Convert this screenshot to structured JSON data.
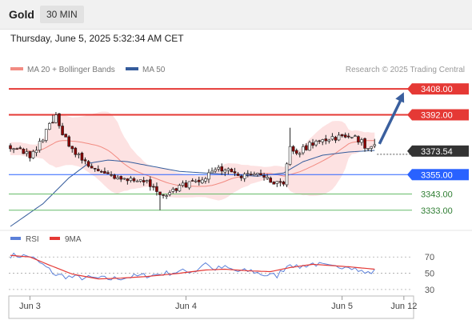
{
  "header": {
    "asset": "Gold",
    "timeframe": "30 MIN",
    "datetime": "Thursday, June 5, 2025 5:32:34 AM CET",
    "copyright": "Research © 2025 Trading Central"
  },
  "colors": {
    "resistance": "#e53935",
    "support_strong": "#2962ff",
    "support_weak": "#66bb6a",
    "ma20": "#f28b82",
    "bands": "#fde2e2",
    "ma50": "#355c9c",
    "candle_up": "#ffffff",
    "candle_down": "#8b0000",
    "arrow": "#3a5f9e",
    "rsi": "#5b80d9",
    "rsi_ma": "#e53935"
  },
  "chart_data": [
    {
      "type": "candlestick",
      "title": "",
      "legend": [
        {
          "name": "MA 20 + Bollinger Bands",
          "color": "#f28b82"
        },
        {
          "name": "MA 50",
          "color": "#355c9c"
        }
      ],
      "legend_placement": "top-left",
      "ylim": [
        3322,
        3416
      ],
      "x_labels": [
        {
          "label": "Jun 3",
          "x": 6
        },
        {
          "label": "Jun 4",
          "x": 54
        },
        {
          "label": "Jun 5",
          "x": 102
        },
        {
          "label": "Jun 12",
          "x": 121
        }
      ],
      "last_price": 3373.54,
      "levels": [
        {
          "label": "3408.00",
          "value": 3408.0,
          "kind": "resistance"
        },
        {
          "label": "3392.00",
          "value": 3392.0,
          "kind": "resistance"
        },
        {
          "label": "3373.54",
          "value": 3373.54,
          "kind": "last"
        },
        {
          "label": "3355.00",
          "value": 3355.0,
          "kind": "support_strong"
        },
        {
          "label": "3343.00",
          "value": 3343.0,
          "kind": "support_weak"
        },
        {
          "label": "3333.00",
          "value": 3333.0,
          "kind": "support_weak"
        }
      ],
      "forecast_arrow": {
        "from": [
          112,
          3374
        ],
        "to": [
          121,
          3406
        ]
      },
      "key_prices": {
        "low": 3333,
        "high": 3392,
        "start": 3373
      }
    },
    {
      "type": "line",
      "title": "",
      "legend": [
        {
          "name": "RSI",
          "color": "#5b80d9"
        },
        {
          "name": "9MA",
          "color": "#e53935"
        }
      ],
      "legend_placement": "top-left",
      "ylim": [
        22,
        85
      ],
      "y_ticks": [
        70,
        50,
        30
      ],
      "rsi_anchors": [
        [
          0,
          72
        ],
        [
          6,
          71
        ],
        [
          10,
          60
        ],
        [
          14,
          48
        ],
        [
          19,
          45
        ],
        [
          25,
          44
        ],
        [
          31,
          43
        ],
        [
          38,
          46
        ],
        [
          44,
          48
        ],
        [
          52,
          52
        ],
        [
          57,
          53
        ],
        [
          60,
          64
        ],
        [
          62,
          55
        ],
        [
          66,
          57
        ],
        [
          70,
          52
        ],
        [
          74,
          53
        ],
        [
          78,
          48
        ],
        [
          82,
          47
        ],
        [
          86,
          63
        ],
        [
          88,
          57
        ],
        [
          93,
          62
        ],
        [
          99,
          57
        ],
        [
          104,
          60
        ],
        [
          109,
          50
        ],
        [
          112,
          52
        ]
      ],
      "ma_anchors": [
        [
          0,
          72
        ],
        [
          6,
          70
        ],
        [
          12,
          60
        ],
        [
          19,
          49
        ],
        [
          27,
          43
        ],
        [
          34,
          44
        ],
        [
          42,
          46
        ],
        [
          52,
          50
        ],
        [
          60,
          54
        ],
        [
          66,
          55
        ],
        [
          73,
          53
        ],
        [
          80,
          52
        ],
        [
          86,
          57
        ],
        [
          93,
          61
        ],
        [
          104,
          58
        ],
        [
          112,
          55
        ]
      ]
    }
  ]
}
